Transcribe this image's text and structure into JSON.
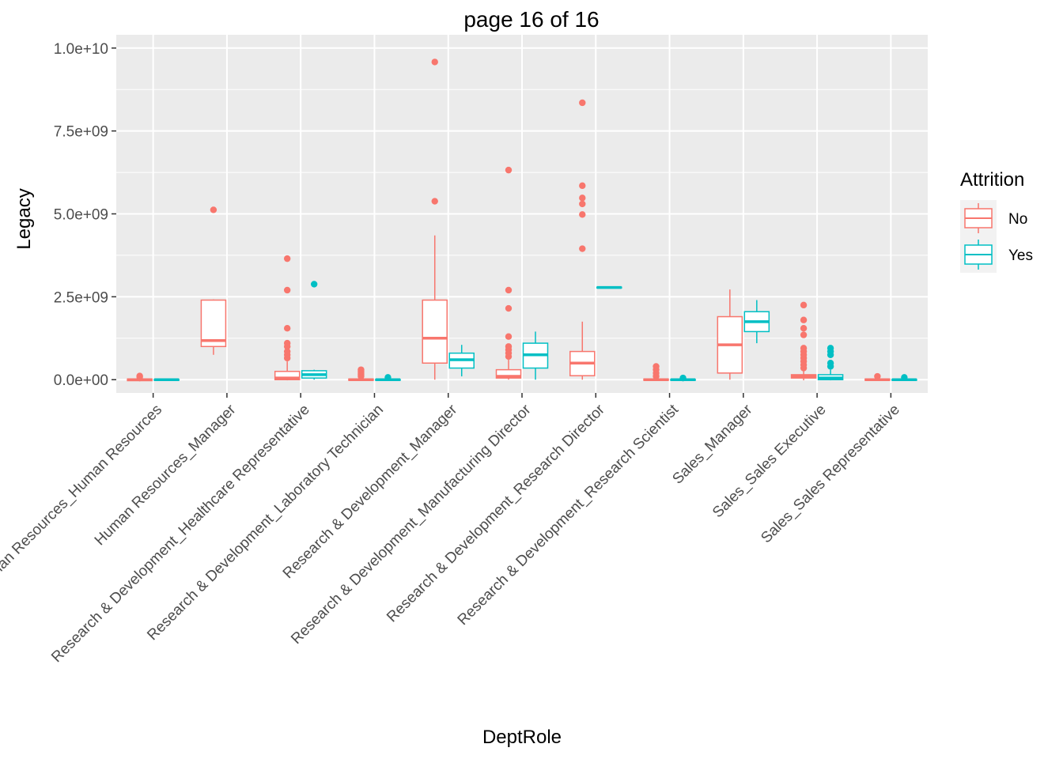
{
  "chart_data": {
    "type": "boxplot",
    "title": "page 16 of 16",
    "xlabel": "DeptRole",
    "ylabel": "Legacy",
    "ylim": [
      -400000000,
      10000000000
    ],
    "yticks": [
      0,
      2500000000,
      5000000000,
      7500000000,
      10000000000
    ],
    "ytick_labels": [
      "0.0e+00",
      "2.5e+09",
      "5.0e+09",
      "7.5e+09",
      "1.0e+10"
    ],
    "grid": true,
    "legend": {
      "title": "Attrition",
      "position": "right",
      "entries": [
        "No",
        "Yes"
      ]
    },
    "colors": {
      "No": "#F8766D",
      "Yes": "#00BFC4",
      "panel": "#EBEBEB",
      "grid": "#FFFFFF"
    },
    "categories": [
      "Human Resources_Human Resources",
      "Human Resources_Manager",
      "Research & Development_Healthcare Representative",
      "Research & Development_Laboratory Technician",
      "Research & Development_Manager",
      "Research & Development_Manufacturing Director",
      "Research & Development_Research Director",
      "Research & Development_Research Scientist",
      "Sales_Manager",
      "Sales_Sales Executive",
      "Sales_Sales Representative"
    ],
    "series": [
      {
        "name": "No",
        "boxes": [
          {
            "q1": -30000000,
            "med": 0,
            "q3": 20000000,
            "lo": -50000000,
            "hi": 60000000,
            "out": [
              80000000,
              110000000
            ]
          },
          {
            "q1": 1000000000,
            "med": 1180000000,
            "q3": 2400000000,
            "lo": 750000000,
            "hi": 2420000000,
            "out": [
              5120000000
            ]
          },
          {
            "q1": 0,
            "med": 50000000,
            "q3": 250000000,
            "lo": -20000000,
            "hi": 550000000,
            "out": [
              650000000,
              750000000,
              850000000,
              1000000000,
              1100000000,
              1550000000,
              2700000000,
              3650000000
            ]
          },
          {
            "q1": -20000000,
            "med": 0,
            "q3": 20000000,
            "lo": -40000000,
            "hi": 60000000,
            "out": [
              100000000,
              150000000,
              200000000,
              250000000,
              300000000
            ]
          },
          {
            "q1": 500000000,
            "med": 1250000000,
            "q3": 2400000000,
            "lo": 0,
            "hi": 4350000000,
            "out": [
              5380000000,
              9580000000
            ]
          },
          {
            "q1": 50000000,
            "med": 100000000,
            "q3": 300000000,
            "lo": 0,
            "hi": 600000000,
            "out": [
              700000000,
              800000000,
              900000000,
              1000000000,
              1300000000,
              2150000000,
              2700000000,
              6320000000
            ]
          },
          {
            "q1": 120000000,
            "med": 500000000,
            "q3": 850000000,
            "lo": 0,
            "hi": 1750000000,
            "out": [
              3950000000,
              4980000000,
              5300000000,
              5480000000,
              5850000000,
              8350000000
            ]
          },
          {
            "q1": -20000000,
            "med": 0,
            "q3": 20000000,
            "lo": -40000000,
            "hi": 60000000,
            "out": [
              100000000,
              200000000,
              300000000,
              400000000
            ]
          },
          {
            "q1": 200000000,
            "med": 1050000000,
            "q3": 1900000000,
            "lo": 0,
            "hi": 2720000000,
            "out": []
          },
          {
            "q1": 50000000,
            "med": 100000000,
            "q3": 150000000,
            "lo": -20000000,
            "hi": 300000000,
            "out": [
              350000000,
              450000000,
              550000000,
              650000000,
              750000000,
              850000000,
              950000000,
              1350000000,
              1550000000,
              1800000000,
              2250000000
            ]
          },
          {
            "q1": -20000000,
            "med": 0,
            "q3": 20000000,
            "lo": -40000000,
            "hi": 50000000,
            "out": [
              100000000
            ]
          }
        ]
      },
      {
        "name": "Yes",
        "boxes": [
          {
            "q1": -20000000,
            "med": 0,
            "q3": 10000000,
            "lo": -30000000,
            "hi": 30000000,
            "out": []
          },
          null,
          {
            "q1": 50000000,
            "med": 150000000,
            "q3": 270000000,
            "lo": 0,
            "hi": 300000000,
            "out": [
              2880000000
            ]
          },
          {
            "q1": -20000000,
            "med": 0,
            "q3": 10000000,
            "lo": -40000000,
            "hi": 30000000,
            "out": [
              70000000
            ]
          },
          {
            "q1": 350000000,
            "med": 600000000,
            "q3": 800000000,
            "lo": 100000000,
            "hi": 1050000000,
            "out": []
          },
          {
            "q1": 350000000,
            "med": 750000000,
            "q3": 1100000000,
            "lo": 0,
            "hi": 1450000000,
            "out": []
          },
          {
            "q1": 2770000000,
            "med": 2780000000,
            "q3": 2790000000,
            "lo": 2770000000,
            "hi": 2790000000,
            "out": []
          },
          {
            "q1": -20000000,
            "med": 0,
            "q3": 10000000,
            "lo": -40000000,
            "hi": 30000000,
            "out": [
              50000000
            ]
          },
          {
            "q1": 1450000000,
            "med": 1750000000,
            "q3": 2050000000,
            "lo": 1100000000,
            "hi": 2400000000,
            "out": []
          },
          {
            "q1": 0,
            "med": 50000000,
            "q3": 150000000,
            "lo": -20000000,
            "hi": 300000000,
            "out": [
              400000000,
              500000000,
              750000000,
              850000000,
              950000000
            ]
          },
          {
            "q1": -20000000,
            "med": 0,
            "q3": 10000000,
            "lo": -40000000,
            "hi": 30000000,
            "out": [
              70000000
            ]
          }
        ]
      }
    ]
  }
}
